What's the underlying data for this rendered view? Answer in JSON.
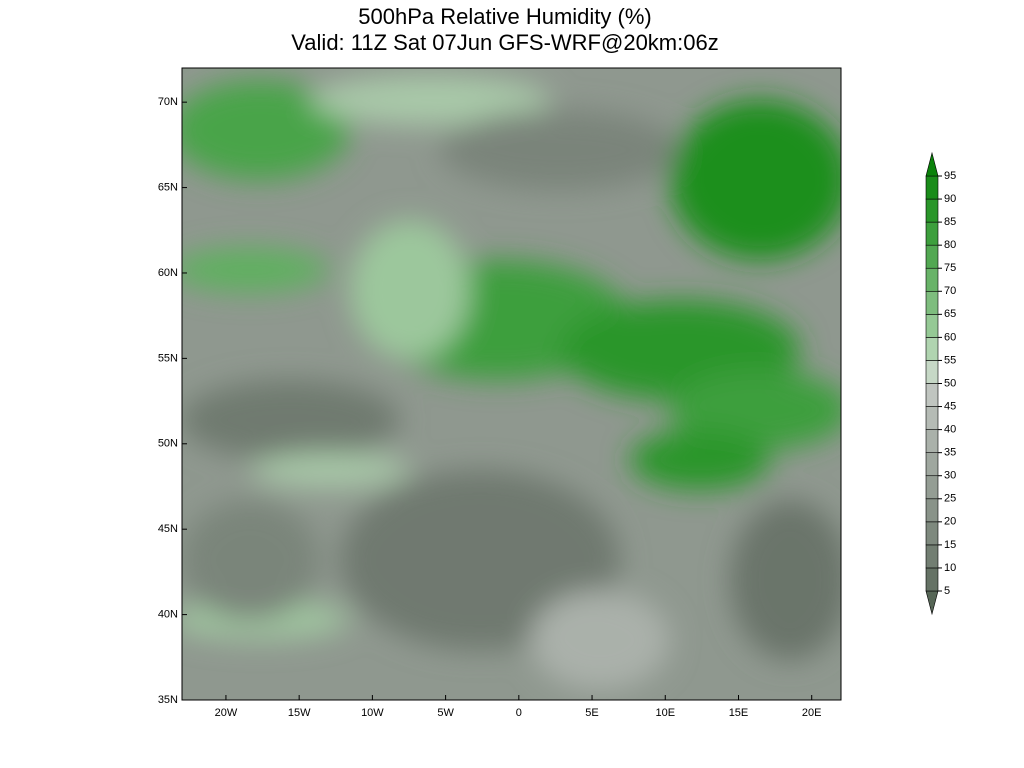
{
  "map": {
    "title": [
      "500hPa Relative Humidity (%)",
      "Valid: 11Z Sat 07Jun GFS-WRF@20km:06z"
    ],
    "xlim": [
      -23,
      22
    ],
    "ylim": [
      35,
      72
    ],
    "xticks": [
      {
        "value": -20,
        "label": "20W"
      },
      {
        "value": -15,
        "label": "15W"
      },
      {
        "value": -10,
        "label": "10W"
      },
      {
        "value": -5,
        "label": "5W"
      },
      0,
      {
        "value": 5,
        "label": "5E"
      },
      {
        "value": 10,
        "label": "10E"
      },
      {
        "value": 15,
        "label": "15E"
      },
      {
        "value": 20,
        "label": "20E"
      }
    ],
    "yticks": [
      {
        "value": 35,
        "label": "35N"
      },
      {
        "value": 40,
        "label": "40N"
      },
      {
        "value": 45,
        "label": "45N"
      },
      {
        "value": 50,
        "label": "50N"
      },
      {
        "value": 55,
        "label": "55N"
      },
      {
        "value": 60,
        "label": "60N"
      },
      {
        "value": 65,
        "label": "65N"
      },
      {
        "value": 70,
        "label": "70N"
      }
    ]
  },
  "colorbar": {
    "levels": [
      5,
      10,
      15,
      20,
      25,
      30,
      35,
      40,
      45,
      50,
      55,
      60,
      65,
      70,
      75,
      80,
      85,
      90,
      95
    ],
    "colors": [
      "#566656",
      "#657265",
      "#727e72",
      "#7e897e",
      "#899389",
      "#949d94",
      "#9fa79f",
      "#aab1aa",
      "#b5bbb5",
      "#c0c5c0",
      "#c6d8c6",
      "#b0d4b0",
      "#95c995",
      "#7ebd7e",
      "#68b368",
      "#52a852",
      "#3d9f3d",
      "#2a962a",
      "#1a8c1a",
      "#0a820a"
    ]
  }
}
